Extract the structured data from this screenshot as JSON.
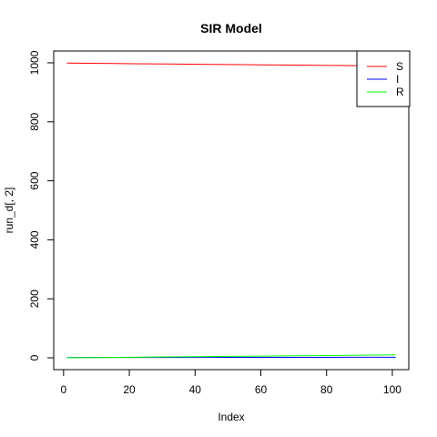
{
  "chart_data": {
    "type": "line",
    "title": "SIR Model",
    "xlabel": "Index",
    "ylabel": "run_d[, 2]",
    "xlim": [
      1,
      101
    ],
    "ylim": [
      0,
      1000
    ],
    "x_ticks": [
      0,
      20,
      40,
      60,
      80,
      100
    ],
    "y_ticks": [
      0,
      200,
      400,
      600,
      800,
      1000
    ],
    "grid": false,
    "legend_position": "top-right",
    "x": [
      1,
      11,
      21,
      31,
      41,
      51,
      61,
      71,
      81,
      91,
      101
    ],
    "series": [
      {
        "name": "S",
        "color": "#ff0000",
        "values": [
          999,
          998,
          997,
          996,
          995,
          994,
          993,
          992,
          991,
          990,
          989
        ]
      },
      {
        "name": "I",
        "color": "#0000ff",
        "values": [
          1,
          1.1,
          1.2,
          1.3,
          1.4,
          1.5,
          1.6,
          1.7,
          1.8,
          1.9,
          2
        ]
      },
      {
        "name": "R",
        "color": "#00ff00",
        "values": [
          0,
          1,
          2,
          3,
          4,
          5,
          6,
          7,
          8,
          9,
          10
        ]
      }
    ]
  }
}
